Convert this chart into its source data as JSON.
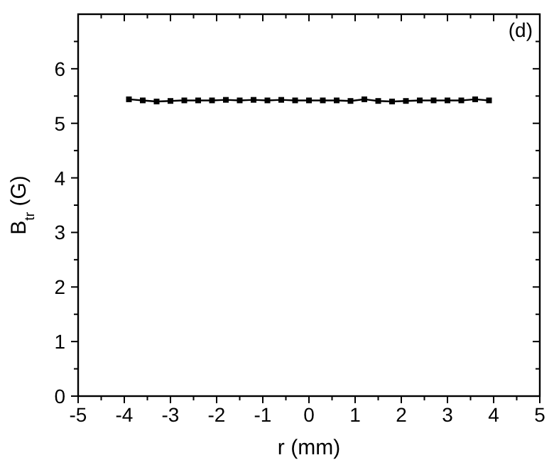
{
  "chart_data": {
    "type": "line",
    "xlabel": "r (mm)",
    "ylabel": "B$_{tr}$ (G)",
    "annotations": [
      "(d)"
    ],
    "x": [
      -3.9,
      -3.6,
      -3.3,
      -3.0,
      -2.7,
      -2.4,
      -2.1,
      -1.8,
      -1.5,
      -1.2,
      -0.9,
      -0.6,
      -0.3,
      0.0,
      0.3,
      0.6,
      0.9,
      1.2,
      1.5,
      1.8,
      2.1,
      2.4,
      2.7,
      3.0,
      3.3,
      3.6,
      3.9
    ],
    "series": [
      {
        "color": "#000000",
        "values": [
          5.44,
          5.42,
          5.4,
          5.41,
          5.42,
          5.42,
          5.42,
          5.43,
          5.42,
          5.43,
          5.42,
          5.43,
          5.42,
          5.42,
          5.42,
          5.42,
          5.41,
          5.44,
          5.41,
          5.4,
          5.41,
          5.42,
          5.42,
          5.42,
          5.42,
          5.44,
          5.42
        ]
      }
    ],
    "marker": "square",
    "line_style": "solid",
    "grid": false,
    "xlim": [
      -5,
      5
    ],
    "xticks": [
      -5,
      {
        "value": -4.5,
        "label": null
      },
      -4,
      {
        "value": -3.5,
        "label": null
      },
      -3,
      {
        "value": -2.5,
        "label": null
      },
      -2,
      {
        "value": -1.5,
        "label": null
      },
      -1,
      {
        "value": -0.5,
        "label": null
      },
      0,
      {
        "value": 0.5,
        "label": null
      },
      1,
      {
        "value": 1.5,
        "label": null
      },
      2,
      {
        "value": 2.5,
        "label": null
      },
      3,
      {
        "value": 3.5,
        "label": null
      },
      4,
      {
        "value": 4.5,
        "label": null
      },
      5
    ],
    "ylim": [
      0,
      7
    ],
    "yticks": [
      0,
      {
        "value": 0.5,
        "label": null
      },
      1,
      {
        "value": 1.5,
        "label": null
      },
      2,
      {
        "value": 2.5,
        "label": null
      },
      3,
      {
        "value": 3.5,
        "label": null
      },
      4,
      {
        "value": 4.5,
        "label": null
      },
      5,
      {
        "value": 5.5,
        "label": null
      },
      6,
      {
        "value": 6.5,
        "label": null
      }
    ]
  }
}
